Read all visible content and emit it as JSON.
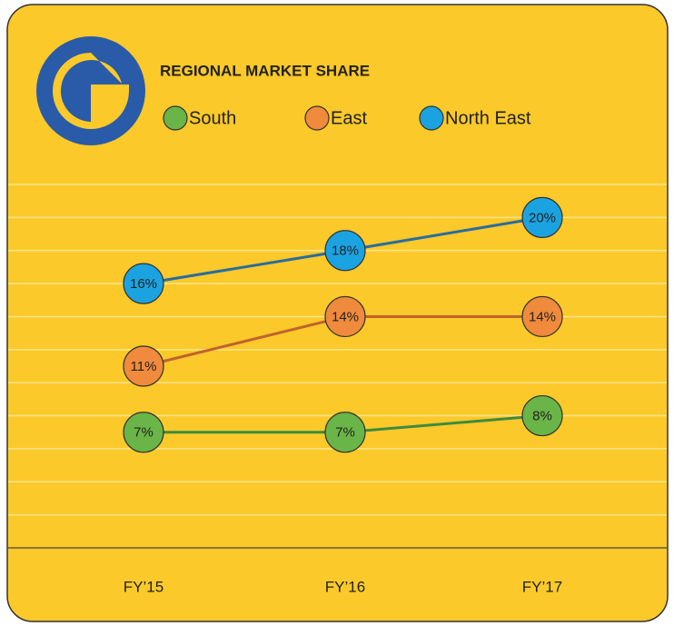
{
  "chart_data": {
    "type": "line",
    "title": "REGIONAL MARKET SHARE",
    "categories": [
      "FY’15",
      "FY’16",
      "FY’17"
    ],
    "series": [
      {
        "name": "South",
        "color": "#6ab547",
        "line_color": "#3d8b3d",
        "values": [
          7,
          7,
          8
        ],
        "value_labels": [
          "7%",
          "7%",
          "8%"
        ]
      },
      {
        "name": "East",
        "color": "#f08a3c",
        "line_color": "#c0622e",
        "values": [
          11,
          14,
          14
        ],
        "value_labels": [
          "11%",
          "14%",
          "14%"
        ]
      },
      {
        "name": "North East",
        "color": "#1ba3e1",
        "line_color": "#2a6c9e",
        "values": [
          16,
          18,
          20
        ],
        "value_labels": [
          "16%",
          "18%",
          "20%"
        ]
      }
    ],
    "ylim": [
      0,
      22
    ],
    "yticks": [
      0,
      2,
      4,
      6,
      8,
      10,
      12,
      14,
      16,
      18,
      20,
      22
    ],
    "grid": true
  }
}
